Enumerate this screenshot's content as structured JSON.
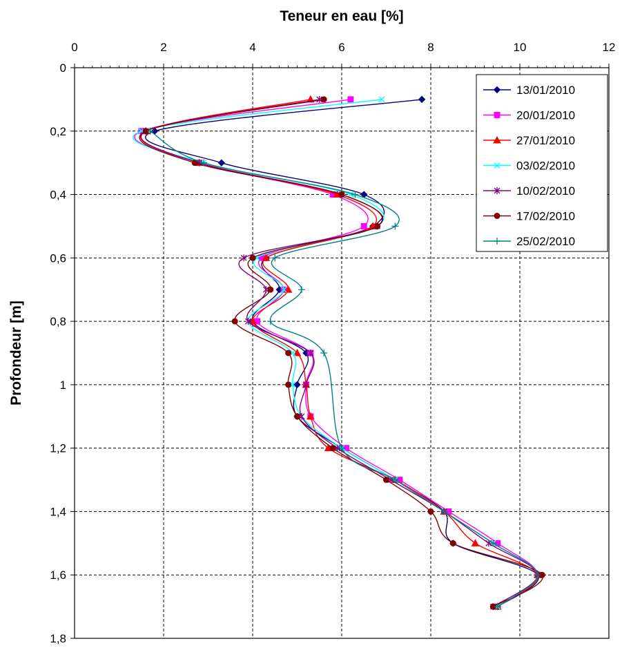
{
  "chart_data": {
    "type": "line",
    "title": "",
    "xlabel": "Teneur en eau [%]",
    "ylabel": "Profondeur [m]",
    "xlim": [
      0,
      12
    ],
    "ylim": [
      0,
      1.8
    ],
    "y_inverted": true,
    "x_axis_position": "top",
    "x_ticks": [
      "0",
      "2",
      "4",
      "6",
      "8",
      "10",
      "12"
    ],
    "y_ticks": [
      "0",
      "0,2",
      "0,4",
      "0,6",
      "0,8",
      "1",
      "1,2",
      "1,4",
      "1,6",
      "1,8"
    ],
    "grid": true,
    "legend_position": "top-right",
    "series": [
      {
        "name": "13/01/2010",
        "color": "#000080",
        "marker": "diamond",
        "x": [
          7.8,
          1.8,
          3.3,
          6.5,
          6.7,
          4.3,
          4.6,
          4.0,
          5.2,
          5.0,
          5.0,
          6.0,
          7.2,
          8.3,
          8.5,
          10.4,
          9.5
        ],
        "y": [
          0.1,
          0.2,
          0.3,
          0.4,
          0.5,
          0.6,
          0.7,
          0.8,
          0.9,
          1.0,
          1.1,
          1.2,
          1.3,
          1.4,
          1.5,
          1.6,
          1.7
        ]
      },
      {
        "name": "20/01/2010",
        "color": "#ff00ff",
        "marker": "square",
        "x": [
          6.2,
          1.5,
          2.8,
          5.8,
          6.5,
          4.2,
          4.7,
          4.1,
          5.3,
          5.2,
          5.3,
          6.1,
          7.3,
          8.4,
          9.5,
          10.4,
          9.5
        ],
        "y": [
          0.1,
          0.2,
          0.3,
          0.4,
          0.5,
          0.6,
          0.7,
          0.8,
          0.9,
          1.0,
          1.1,
          1.2,
          1.3,
          1.4,
          1.5,
          1.6,
          1.7
        ]
      },
      {
        "name": "27/01/2010",
        "color": "#ff0000",
        "marker": "triangle",
        "x": [
          5.3,
          1.6,
          2.8,
          5.9,
          6.7,
          4.3,
          4.8,
          4.0,
          5.0,
          5.2,
          5.3,
          5.7,
          7.2,
          8.3,
          9.0,
          10.4,
          9.5
        ],
        "y": [
          0.1,
          0.2,
          0.3,
          0.4,
          0.5,
          0.6,
          0.7,
          0.8,
          0.9,
          1.0,
          1.1,
          1.2,
          1.3,
          1.4,
          1.5,
          1.6,
          1.7
        ]
      },
      {
        "name": "03/02/2010",
        "color": "#00ffff",
        "marker": "x",
        "x": [
          6.9,
          1.5,
          2.9,
          6.2,
          6.8,
          4.1,
          4.7,
          3.9,
          4.9,
          4.9,
          5.1,
          6.0,
          7.2,
          8.3,
          9.4,
          10.4,
          9.5
        ],
        "y": [
          0.1,
          0.2,
          0.3,
          0.4,
          0.5,
          0.6,
          0.7,
          0.8,
          0.9,
          1.0,
          1.1,
          1.2,
          1.3,
          1.4,
          1.5,
          1.6,
          1.7
        ]
      },
      {
        "name": "10/02/2010",
        "color": "#800080",
        "marker": "star",
        "x": [
          5.5,
          1.6,
          2.8,
          6.0,
          6.8,
          3.8,
          4.3,
          3.9,
          5.3,
          5.2,
          5.1,
          5.9,
          7.1,
          8.3,
          9.3,
          10.4,
          9.4
        ],
        "y": [
          0.1,
          0.2,
          0.3,
          0.4,
          0.5,
          0.6,
          0.7,
          0.8,
          0.9,
          1.0,
          1.1,
          1.2,
          1.3,
          1.4,
          1.5,
          1.6,
          1.7
        ]
      },
      {
        "name": "17/02/2010",
        "color": "#800000",
        "marker": "circle",
        "x": [
          5.6,
          1.6,
          2.7,
          6.0,
          6.8,
          4.0,
          4.4,
          3.6,
          4.8,
          4.8,
          5.0,
          5.8,
          7.0,
          8.0,
          8.5,
          10.5,
          9.4
        ],
        "y": [
          0.1,
          0.2,
          0.3,
          0.4,
          0.5,
          0.6,
          0.7,
          0.8,
          0.9,
          1.0,
          1.1,
          1.2,
          1.3,
          1.4,
          1.5,
          1.6,
          1.7
        ]
      },
      {
        "name": "25/02/2010",
        "color": "#008080",
        "marker": "plus",
        "x": [
          1.7,
          2.9,
          6.3,
          7.2,
          4.5,
          5.1,
          4.4,
          5.6,
          6.0,
          7.2,
          8.3,
          9.4,
          10.4,
          9.5
        ],
        "y": [
          0.2,
          0.3,
          0.4,
          0.5,
          0.6,
          0.7,
          0.8,
          0.9,
          1.2,
          1.3,
          1.4,
          1.5,
          1.6,
          1.7
        ]
      }
    ]
  }
}
